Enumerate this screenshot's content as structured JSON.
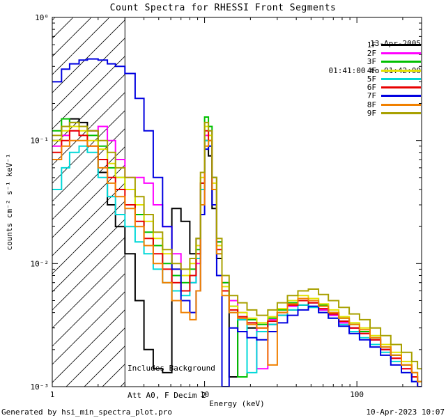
{
  "title": "Count Spectra for RHESSI Front Segments",
  "legend_header": {
    "date": "13-Apr-2005",
    "time_range": "01:41:00 to 01:42:00"
  },
  "annotations": {
    "line1": "Includes Background",
    "line2": "Att A0, F Decim 2"
  },
  "footer": {
    "left": "Generated by hsi_min_spectra_plot.pro",
    "right": "10-Apr-2023 10:07"
  },
  "chart_data": {
    "type": "line",
    "mode": "histogram-steps",
    "title": "Count Spectra for RHESSI Front Segments",
    "xlabel": "Energy (keV)",
    "ylabel": "counts cm⁻² s⁻¹ keV⁻¹",
    "xscale": "log",
    "yscale": "log",
    "xlim": [
      1,
      266
    ],
    "ylim": [
      0.001,
      1
    ],
    "grid": false,
    "legend_position": "upper-right-inside",
    "xticks": [
      {
        "value": 1,
        "label": "1"
      },
      {
        "value": 10,
        "label": "10"
      },
      {
        "value": 100,
        "label": "100"
      }
    ],
    "yticks": [
      {
        "value": 1,
        "label": "10⁰"
      },
      {
        "value": 0.1,
        "label": "10⁻¹"
      },
      {
        "value": 0.01,
        "label": "10⁻²"
      },
      {
        "value": 0.001,
        "label": "10⁻³"
      }
    ],
    "hatch_region": {
      "xmin": 1,
      "xmax": 3
    },
    "energies_keV": [
      1.0,
      1.15,
      1.3,
      1.5,
      1.7,
      2.0,
      2.3,
      2.6,
      3.0,
      3.5,
      4.0,
      4.6,
      5.3,
      6.1,
      7.0,
      8.0,
      8.8,
      9.4,
      10.0,
      10.6,
      11.2,
      12.0,
      13.0,
      14.5,
      16.5,
      19,
      22,
      26,
      30,
      35,
      41,
      48,
      56,
      65,
      76,
      89,
      104,
      122,
      143,
      167,
      196,
      229,
      250
    ],
    "series": [
      {
        "name": "1F",
        "color": "#000000",
        "values": [
          0.1,
          0.13,
          0.15,
          0.14,
          0.12,
          0.055,
          0.03,
          0.02,
          0.012,
          0.005,
          0.002,
          0.0014,
          0.0013,
          0.028,
          0.022,
          0.012,
          0.016,
          0.04,
          0.1,
          0.075,
          0.028,
          0.011,
          0.006,
          0.0012,
          0.0035,
          0.003,
          0.0028,
          0.0032,
          0.0038,
          0.0042,
          0.0046,
          0.0048,
          0.0042,
          0.0038,
          0.0034,
          0.003,
          0.0028,
          0.0024,
          0.002,
          0.0018,
          0.0015,
          0.0012,
          0.001
        ]
      },
      {
        "name": "2F",
        "color": "#ff00ff",
        "values": [
          0.09,
          0.11,
          0.12,
          0.13,
          0.12,
          0.13,
          0.1,
          0.07,
          0.05,
          0.05,
          0.045,
          0.03,
          0.02,
          0.012,
          0.008,
          0.007,
          0.01,
          0.03,
          0.11,
          0.12,
          0.05,
          0.015,
          0.007,
          0.005,
          0.004,
          0.0035,
          0.0014,
          0.0035,
          0.004,
          0.0045,
          0.005,
          0.0048,
          0.0042,
          0.0038,
          0.0033,
          0.003,
          0.0027,
          0.0024,
          0.002,
          0.0017,
          0.0014,
          0.0012,
          0.001
        ]
      },
      {
        "name": "3F",
        "color": "#00c000",
        "values": [
          0.12,
          0.15,
          0.14,
          0.13,
          0.11,
          0.09,
          0.06,
          0.05,
          0.04,
          0.025,
          0.018,
          0.014,
          0.01,
          0.008,
          0.007,
          0.009,
          0.013,
          0.045,
          0.155,
          0.13,
          0.05,
          0.015,
          0.007,
          0.0045,
          0.0012,
          0.0035,
          0.0032,
          0.0036,
          0.0042,
          0.0048,
          0.005,
          0.0052,
          0.0046,
          0.004,
          0.0036,
          0.0032,
          0.0028,
          0.0025,
          0.0021,
          0.0018,
          0.0015,
          0.0013,
          0.0011
        ]
      },
      {
        "name": "4F",
        "color": "#e2e200",
        "values": [
          0.1,
          0.12,
          0.13,
          0.12,
          0.1,
          0.085,
          0.065,
          0.05,
          0.04,
          0.03,
          0.022,
          0.016,
          0.012,
          0.009,
          0.008,
          0.01,
          0.014,
          0.05,
          0.13,
          0.11,
          0.045,
          0.014,
          0.0065,
          0.0045,
          0.004,
          0.0036,
          0.0033,
          0.0037,
          0.0043,
          0.005,
          0.0055,
          0.0052,
          0.0047,
          0.0042,
          0.0037,
          0.0033,
          0.003,
          0.0026,
          0.0022,
          0.0019,
          0.0016,
          0.0013,
          0.0011
        ]
      },
      {
        "name": "5F",
        "color": "#00d8d8",
        "values": [
          0.04,
          0.06,
          0.08,
          0.09,
          0.08,
          0.05,
          0.035,
          0.025,
          0.02,
          0.015,
          0.012,
          0.009,
          0.007,
          0.006,
          0.0055,
          0.007,
          0.011,
          0.04,
          0.1,
          0.09,
          0.04,
          0.012,
          0.006,
          0.004,
          0.0035,
          0.0013,
          0.0028,
          0.0032,
          0.0038,
          0.0042,
          0.0046,
          0.0044,
          0.004,
          0.0036,
          0.0032,
          0.0028,
          0.0025,
          0.0022,
          0.0019,
          0.0016,
          0.0013,
          0.0011,
          0.001
        ]
      },
      {
        "name": "6F",
        "color": "#e80000",
        "values": [
          0.08,
          0.1,
          0.12,
          0.11,
          0.09,
          0.07,
          0.05,
          0.04,
          0.03,
          0.022,
          0.016,
          0.012,
          0.009,
          0.007,
          0.006,
          0.008,
          0.012,
          0.045,
          0.12,
          0.1,
          0.04,
          0.013,
          0.006,
          0.0042,
          0.0037,
          0.0033,
          0.003,
          0.0034,
          0.004,
          0.0046,
          0.005,
          0.0048,
          0.0043,
          0.0039,
          0.0034,
          0.003,
          0.0027,
          0.0024,
          0.002,
          0.0017,
          0.0014,
          0.0012,
          0.001
        ]
      },
      {
        "name": "7F",
        "color": "#0000e0",
        "values": [
          0.3,
          0.38,
          0.42,
          0.45,
          0.46,
          0.45,
          0.42,
          0.4,
          0.35,
          0.22,
          0.12,
          0.05,
          0.02,
          0.009,
          0.005,
          0.004,
          0.006,
          0.025,
          0.085,
          0.09,
          0.03,
          0.008,
          0.001,
          0.003,
          0.0028,
          0.0025,
          0.0024,
          0.0028,
          0.0033,
          0.0038,
          0.0042,
          0.0045,
          0.004,
          0.0036,
          0.0031,
          0.0027,
          0.0024,
          0.0021,
          0.0018,
          0.0015,
          0.0013,
          0.0011,
          0.001
        ]
      },
      {
        "name": "8F",
        "color": "#f08000",
        "values": [
          0.07,
          0.09,
          0.1,
          0.1,
          0.09,
          0.06,
          0.045,
          0.035,
          0.028,
          0.02,
          0.014,
          0.01,
          0.007,
          0.005,
          0.004,
          0.0035,
          0.006,
          0.03,
          0.09,
          0.1,
          0.04,
          0.012,
          0.0055,
          0.004,
          0.0036,
          0.0032,
          0.003,
          0.0015,
          0.004,
          0.0047,
          0.0052,
          0.005,
          0.0045,
          0.004,
          0.0036,
          0.0032,
          0.0029,
          0.0025,
          0.0021,
          0.0018,
          0.0015,
          0.0013,
          0.0011
        ]
      },
      {
        "name": "9F",
        "color": "#a8a000",
        "values": [
          0.11,
          0.13,
          0.14,
          0.13,
          0.12,
          0.1,
          0.08,
          0.06,
          0.05,
          0.035,
          0.025,
          0.018,
          0.013,
          0.01,
          0.009,
          0.011,
          0.016,
          0.055,
          0.14,
          0.12,
          0.05,
          0.016,
          0.008,
          0.0055,
          0.0048,
          0.0042,
          0.0038,
          0.0042,
          0.0048,
          0.0055,
          0.006,
          0.0062,
          0.0056,
          0.005,
          0.0044,
          0.0039,
          0.0035,
          0.003,
          0.0026,
          0.0022,
          0.0019,
          0.0016,
          0.0014
        ]
      }
    ]
  }
}
